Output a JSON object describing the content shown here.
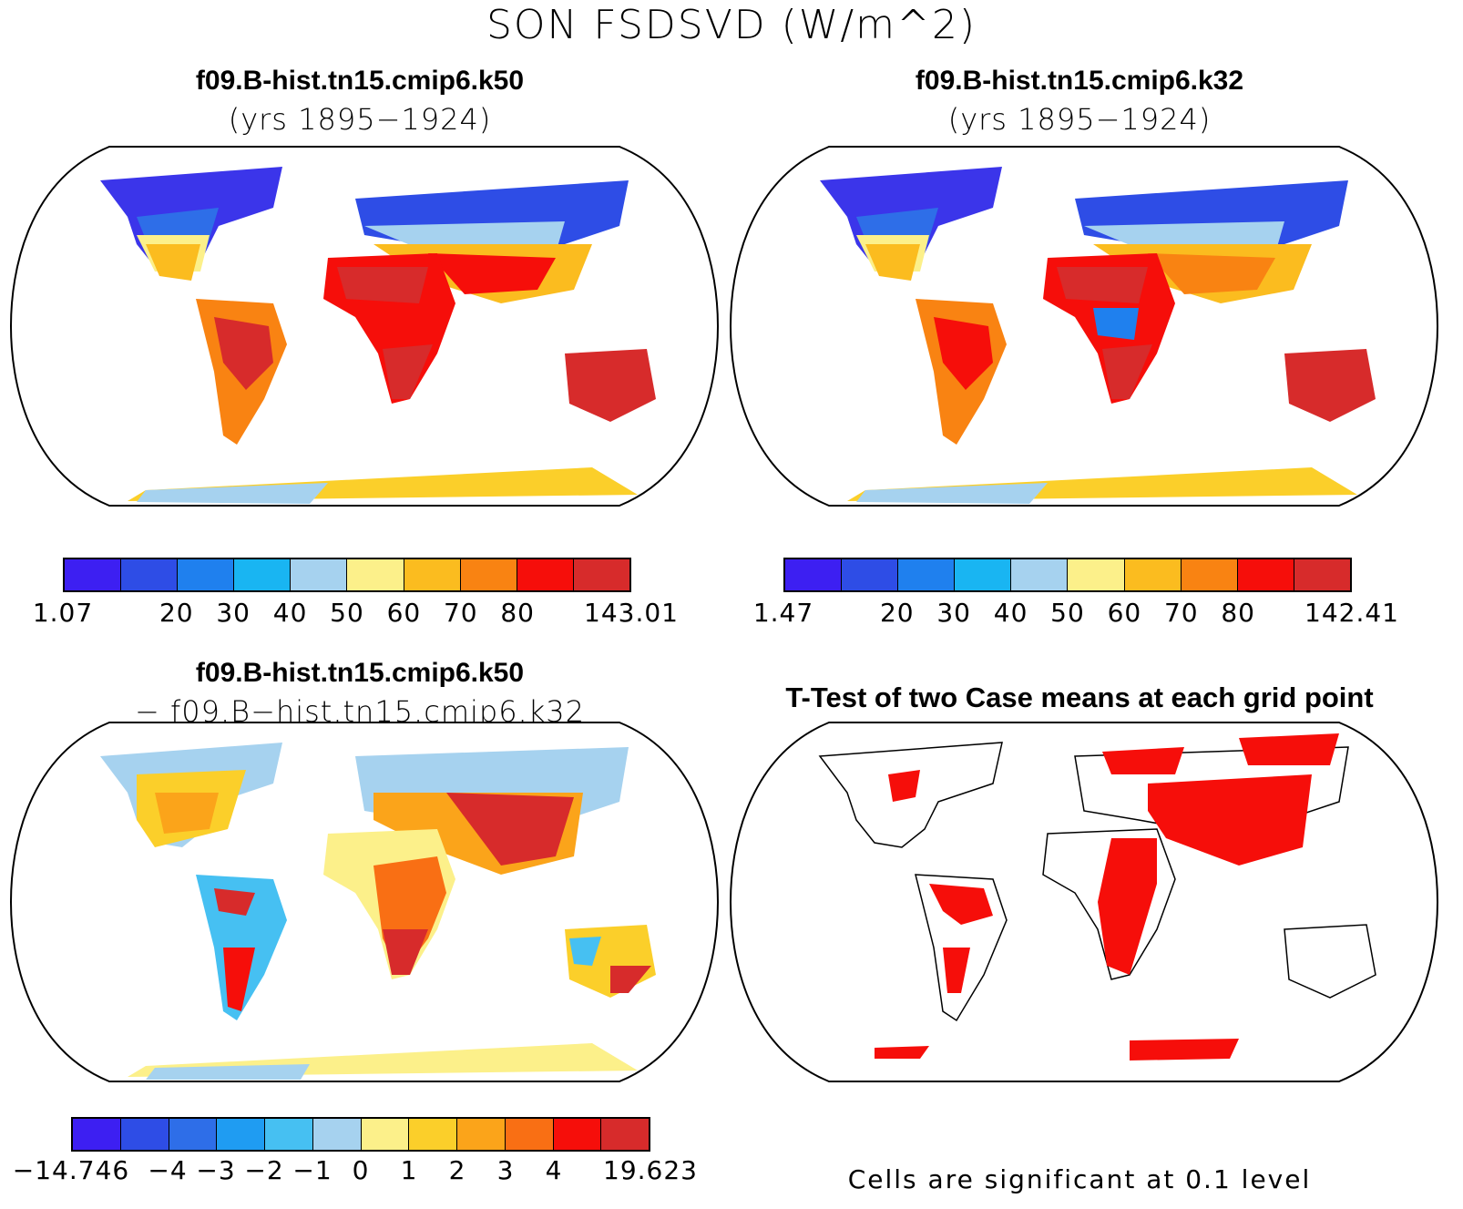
{
  "title": "SON FSDSVD (W/m^2)",
  "panels": {
    "top_left": {
      "case": "f09.B-hist.tn15.cmip6.k50",
      "years": "(yrs 1895−1924)"
    },
    "top_right": {
      "case": "f09.B-hist.tn15.cmip6.k32",
      "years": "(yrs 1895−1924)"
    },
    "bottom_left": {
      "case": "f09.B-hist.tn15.cmip6.k50",
      "minus_case": "− f09.B−hist.tn15.cmip6.k32"
    },
    "bottom_right": {
      "title": "T-Test of two Case means at each grid point",
      "footnote": "Cells are significant at 0.1 level"
    }
  },
  "colorbars": {
    "top_left": {
      "colors": [
        "#3d1ff2",
        "#2e4de6",
        "#1f80ee",
        "#19b5f2",
        "#a6d2ef",
        "#fcf08a",
        "#fbbc1f",
        "#f98312",
        "#f60e0a",
        "#d72b2b"
      ],
      "labels": [
        "1.07",
        "20",
        "30",
        "40",
        "50",
        "60",
        "70",
        "80",
        "143.01"
      ]
    },
    "top_right": {
      "colors": [
        "#3d1ff2",
        "#2e4de6",
        "#1f80ee",
        "#19b5f2",
        "#a6d2ef",
        "#fcf08a",
        "#fbbc1f",
        "#f98312",
        "#f60e0a",
        "#d72b2b"
      ],
      "labels": [
        "1.47",
        "20",
        "30",
        "40",
        "50",
        "60",
        "70",
        "80",
        "142.41"
      ]
    },
    "bottom_left": {
      "colors": [
        "#3d1ff2",
        "#2e4de6",
        "#2e6ee8",
        "#1f9cf2",
        "#46c0f2",
        "#a6d2ef",
        "#fcf08a",
        "#fbcf2a",
        "#fba41a",
        "#f96f14",
        "#f60e0a",
        "#d72b2b"
      ],
      "labels": [
        "−14.746",
        "−4",
        "−3",
        "−2",
        "−1",
        "0",
        "1",
        "2",
        "3",
        "4",
        "19.623"
      ]
    }
  }
}
